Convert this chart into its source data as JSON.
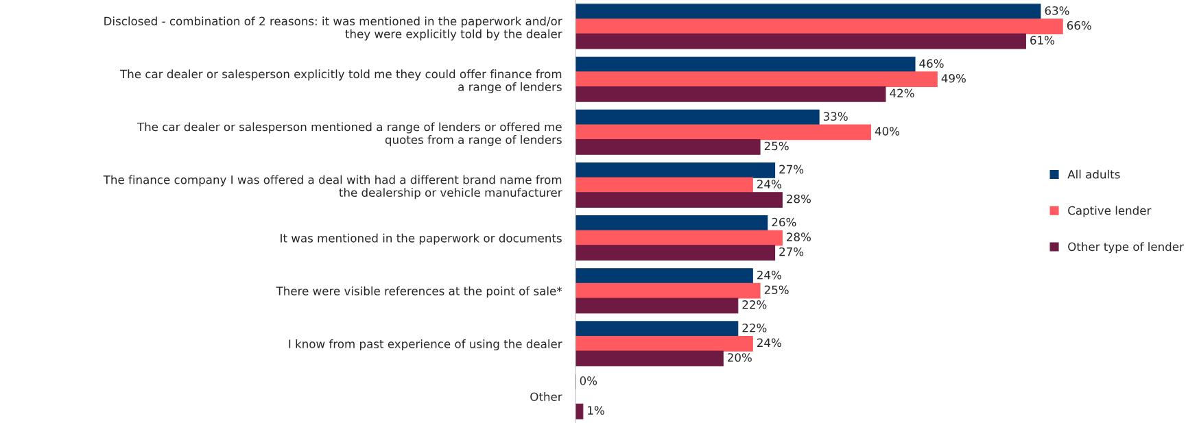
{
  "chart_data": {
    "type": "bar",
    "orientation": "horizontal",
    "data_labels": true,
    "legend": "right",
    "grid": false,
    "categories": [
      "Disclosed - combination of 2 reasons: it was mentioned in the paperwork and/or they were explicitly told by the dealer",
      "The car dealer or salesperson explicitly told me they could offer finance from a range of lenders",
      "The car dealer or salesperson mentioned a range of lenders or offered me quotes from a range of lenders",
      "The finance company I was offered a deal with had a different brand name from the dealership or vehicle manufacturer",
      "It was mentioned in the paperwork or documents",
      "There were visible references at the point of sale*",
      "I know from past experience of using the dealer",
      "Other"
    ],
    "series": [
      {
        "name": "All adults",
        "color": "#003a70",
        "values": [
          63,
          46,
          33,
          27,
          26,
          24,
          22,
          0
        ],
        "value_labels": [
          "63%",
          "46%",
          "33%",
          "27%",
          "26%",
          "24%",
          "22%",
          "0%"
        ]
      },
      {
        "name": "Captive lender",
        "color": "#ff5a5f",
        "values": [
          66,
          49,
          40,
          24,
          28,
          25,
          24,
          null
        ],
        "value_labels": [
          "66%",
          "49%",
          "40%",
          "24%",
          "28%",
          "25%",
          "24%",
          null
        ]
      },
      {
        "name": "Other type of lender",
        "color": "#6e1a42",
        "values": [
          61,
          42,
          25,
          28,
          27,
          22,
          20,
          1
        ],
        "value_labels": [
          "61%",
          "42%",
          "25%",
          "28%",
          "27%",
          "22%",
          "20%",
          "1%"
        ]
      }
    ]
  }
}
